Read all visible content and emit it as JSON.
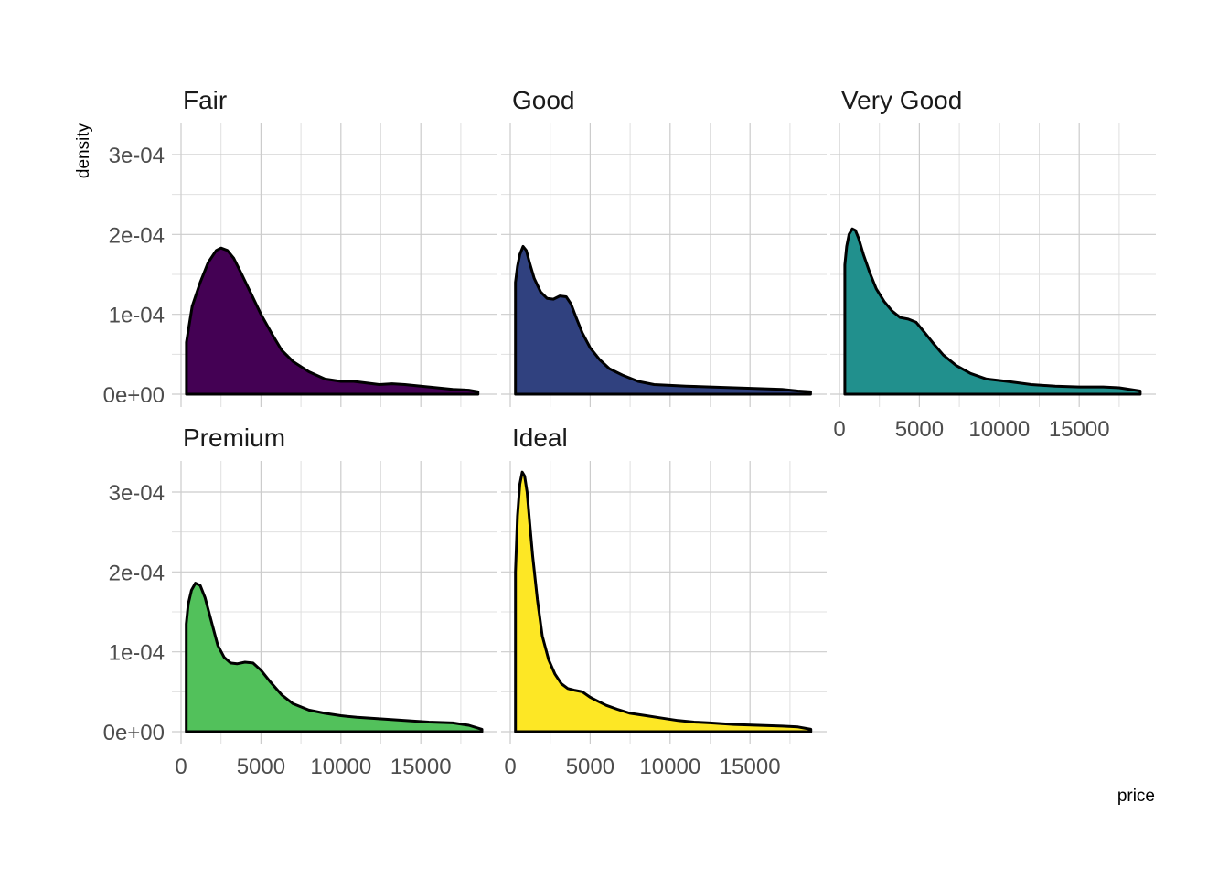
{
  "chart_data": {
    "type": "area",
    "xlabel": "price",
    "ylabel": "density",
    "xlim": [
      0,
      18800
    ],
    "ylim": [
      0,
      0.00034
    ],
    "x_ticks": [
      0,
      5000,
      10000,
      15000
    ],
    "x_tick_labels": [
      "0",
      "5000",
      "10000",
      "15000"
    ],
    "y_ticks": [
      0,
      0.0001,
      0.0002,
      0.0003
    ],
    "y_tick_labels": [
      "0e+00",
      "1e-04",
      "2e-04",
      "3e-04"
    ],
    "grid": true,
    "layout": "facet_wrap 3 columns",
    "panels": [
      {
        "label": "Fair",
        "color": "#440154",
        "x": [
          337,
          700,
          1200,
          1700,
          2200,
          2500,
          2900,
          3300,
          3800,
          4400,
          5000,
          5700,
          6300,
          7000,
          8000,
          9000,
          10000,
          10800,
          11600,
          12400,
          13200,
          14000,
          15000,
          16000,
          17000,
          18000,
          18574
        ],
        "y": [
          6.5e-05,
          0.00011,
          0.00014,
          0.000165,
          0.00018,
          0.000183,
          0.00018,
          0.00017,
          0.00015,
          0.000125,
          0.0001,
          7.5e-05,
          5.5e-05,
          4.1e-05,
          2.8e-05,
          1.9e-05,
          1.6e-05,
          1.6e-05,
          1.4e-05,
          1.2e-05,
          1.3e-05,
          1.2e-05,
          1e-05,
          8e-06,
          6e-06,
          5e-06,
          3e-06
        ]
      },
      {
        "label": "Good",
        "color": "#30417f",
        "x": [
          327,
          450,
          600,
          800,
          1000,
          1200,
          1500,
          1900,
          2300,
          2700,
          3100,
          3500,
          3800,
          4100,
          4500,
          5000,
          5600,
          6200,
          7000,
          8000,
          9000,
          10000,
          11000,
          12500,
          14000,
          15500,
          17000,
          18000,
          18788
        ],
        "y": [
          0.00014,
          0.00016,
          0.000175,
          0.000185,
          0.00018,
          0.000165,
          0.000145,
          0.000128,
          0.00012,
          0.000119,
          0.000123,
          0.000122,
          0.000113,
          9.7e-05,
          7.7e-05,
          5.8e-05,
          4.3e-05,
          3.2e-05,
          2.4e-05,
          1.6e-05,
          1.2e-05,
          1.1e-05,
          1e-05,
          9e-06,
          8e-06,
          7e-06,
          6e-06,
          4e-06,
          3e-06
        ]
      },
      {
        "label": "Very Good",
        "color": "#21908d",
        "x": [
          336,
          450,
          600,
          800,
          1000,
          1200,
          1500,
          1900,
          2300,
          2800,
          3300,
          3800,
          4300,
          4800,
          5300,
          5900,
          6500,
          7300,
          8200,
          9200,
          10500,
          12000,
          13500,
          15000,
          16500,
          17500,
          18818
        ],
        "y": [
          0.000162,
          0.000185,
          0.0002,
          0.000207,
          0.000205,
          0.000195,
          0.000175,
          0.000152,
          0.000132,
          0.000116,
          0.000104,
          9.6e-05,
          9.4e-05,
          9e-05,
          7.8e-05,
          6.3e-05,
          4.9e-05,
          3.6e-05,
          2.6e-05,
          1.9e-05,
          1.6e-05,
          1.2e-05,
          1e-05,
          9e-06,
          9e-06,
          8e-06,
          4e-06
        ]
      },
      {
        "label": "Premium",
        "color": "#52c15b",
        "x": [
          326,
          450,
          650,
          900,
          1200,
          1500,
          1900,
          2300,
          2700,
          3100,
          3500,
          4000,
          4500,
          5000,
          5600,
          6300,
          7000,
          8000,
          9000,
          10000,
          11000,
          12500,
          14000,
          15500,
          17000,
          18000,
          18823
        ],
        "y": [
          0.000135,
          0.00016,
          0.000177,
          0.000186,
          0.000183,
          0.000168,
          0.000138,
          0.000108,
          9.3e-05,
          8.6e-05,
          8.5e-05,
          8.7e-05,
          8.6e-05,
          7.7e-05,
          6.2e-05,
          4.6e-05,
          3.5e-05,
          2.7e-05,
          2.3e-05,
          2e-05,
          1.8e-05,
          1.6e-05,
          1.4e-05,
          1.2e-05,
          1.1e-05,
          8e-06,
          3e-06
        ]
      },
      {
        "label": "Ideal",
        "color": "#fde725",
        "x": [
          326,
          450,
          600,
          750,
          900,
          1050,
          1200,
          1400,
          1700,
          2000,
          2400,
          2800,
          3200,
          3600,
          4000,
          4500,
          5000,
          5500,
          6000,
          6700,
          7500,
          8500,
          9500,
          10500,
          11500,
          12500,
          14000,
          15500,
          17000,
          18000,
          18806
        ],
        "y": [
          0.0002,
          0.00027,
          0.00031,
          0.000325,
          0.00032,
          0.0003,
          0.000265,
          0.00022,
          0.000165,
          0.00012,
          9e-05,
          7.2e-05,
          6e-05,
          5.4e-05,
          5.2e-05,
          5e-05,
          4.3e-05,
          3.8e-05,
          3.3e-05,
          2.8e-05,
          2.3e-05,
          2e-05,
          1.7e-05,
          1.4e-05,
          1.2e-05,
          1.1e-05,
          9e-06,
          8e-06,
          7e-06,
          6e-06,
          3e-06
        ]
      }
    ]
  }
}
